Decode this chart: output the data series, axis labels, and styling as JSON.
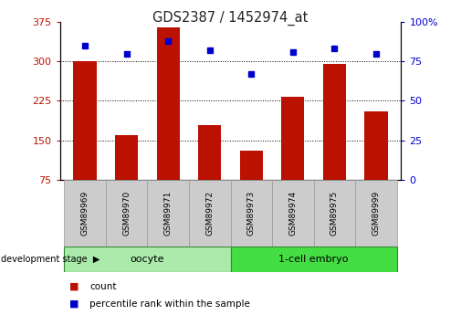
{
  "title": "GDS2387 / 1452974_at",
  "samples": [
    "GSM89969",
    "GSM89970",
    "GSM89971",
    "GSM89972",
    "GSM89973",
    "GSM89974",
    "GSM89975",
    "GSM89999"
  ],
  "counts": [
    300,
    160,
    365,
    178,
    130,
    232,
    295,
    205
  ],
  "percentiles": [
    85,
    80,
    88,
    82,
    67,
    81,
    83,
    80
  ],
  "bar_color": "#BB1100",
  "dot_color": "#0000CC",
  "ylim_left": [
    75,
    375
  ],
  "ylim_right": [
    0,
    100
  ],
  "yticks_left": [
    75,
    150,
    225,
    300,
    375
  ],
  "yticks_right": [
    0,
    25,
    50,
    75,
    100
  ],
  "grid_lines": [
    150,
    225,
    300
  ],
  "groups": [
    {
      "label": "oocyte",
      "indices": [
        0,
        1,
        2,
        3
      ],
      "color": "#AAEAAA"
    },
    {
      "label": "1-cell embryo",
      "indices": [
        4,
        5,
        6,
        7
      ],
      "color": "#44DD44"
    }
  ],
  "group_label": "development stage",
  "legend_count": "count",
  "legend_pct": "percentile rank within the sample",
  "sample_box_color": "#CCCCCC",
  "sample_box_edge": "#999999"
}
